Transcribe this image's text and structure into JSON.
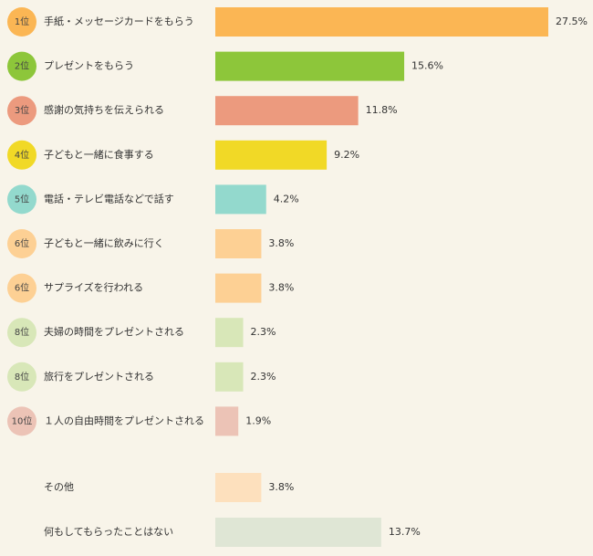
{
  "chart_data": {
    "type": "bar",
    "orientation": "horizontal",
    "categories": [
      "手紙・メッセージカードをもらう",
      "プレゼントをもらう",
      "感謝の気持ちを伝えられる",
      "子どもと一緒に食事する",
      "電話・テレビ電話などで話す",
      "子どもと一緒に飲みに行く",
      "サプライズを行われる",
      "夫婦の時間をプレゼントされる",
      "旅行をプレゼントされる",
      "１人の自由時間をプレゼントされる",
      "その他",
      "何もしてもらったことはない"
    ],
    "ranks": [
      "1位",
      "2位",
      "3位",
      "4位",
      "5位",
      "6位",
      "6位",
      "8位",
      "8位",
      "10位",
      null,
      null
    ],
    "values": [
      27.5,
      15.6,
      11.8,
      9.2,
      4.2,
      3.8,
      3.8,
      2.3,
      2.3,
      1.9,
      3.8,
      13.7
    ],
    "value_labels": [
      "27.5%",
      "15.6%",
      "11.8%",
      "9.2%",
      "4.2%",
      "3.8%",
      "3.8%",
      "2.3%",
      "2.3%",
      "1.9%",
      "3.8%",
      "13.7%"
    ],
    "colors": [
      "#fbb654",
      "#8dc63a",
      "#ec9a7e",
      "#f1d926",
      "#93d9cd",
      "#fdd094",
      "#fdd094",
      "#d8e7b8",
      "#d8e7b8",
      "#ecc3b6",
      "#fde0bd",
      "#dfe6d5"
    ]
  }
}
